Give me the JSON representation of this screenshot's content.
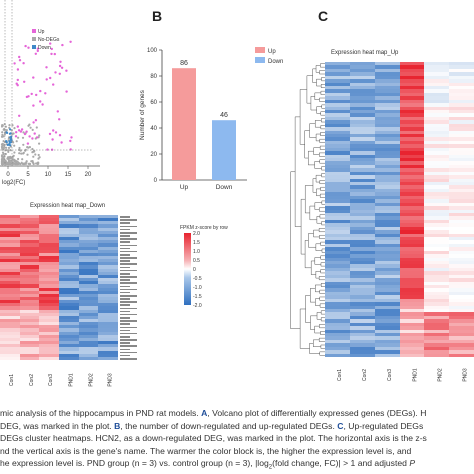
{
  "panels": {
    "B": "B",
    "C": "C"
  },
  "volcano": {
    "legend": [
      {
        "label": "Up",
        "color": "#e565d8"
      },
      {
        "label": "No-DEGs",
        "color": "#a9a9a9"
      },
      {
        "label": "Down",
        "color": "#3f89c8"
      }
    ],
    "xlabel_fragment": "log2(FC)",
    "x_ticks": [
      "0",
      "5",
      "10",
      "15",
      "20"
    ]
  },
  "bar_chart": {
    "chart_data": {
      "type": "bar",
      "categories": [
        "Up",
        "Down"
      ],
      "values": [
        86,
        46
      ],
      "ylabel": "Number of genes",
      "ylim": [
        0,
        100
      ],
      "y_ticks": [
        "0",
        "20",
        "40",
        "60",
        "80",
        "100"
      ],
      "legend": [
        "Up",
        "Down"
      ],
      "colors": [
        "#f59b9b",
        "#8db9ef"
      ]
    }
  },
  "heatmap_down": {
    "title": "Expression heat map_Down",
    "legend_title": "FPKM z-score by row",
    "legend_ticks": [
      "2.0",
      "1.5",
      "1.0",
      "0.5",
      "0",
      "-0.5",
      "-1.0",
      "-1.5",
      "-2.0"
    ],
    "columns": [
      "Con1",
      "Con2",
      "Con3",
      "PND1",
      "PND2",
      "PND3"
    ]
  },
  "heatmap_up": {
    "title": "Expression heat map_Up",
    "columns": [
      "Con1",
      "Con2",
      "Con3",
      "PND1",
      "PND2",
      "PND3"
    ]
  },
  "caption": {
    "line1_pre": "mic analysis of the hippocampus in PND rat models. ",
    "line1_a": "A",
    "line1_post": ", Volcano plot of differentially expressed genes (DEGs). H",
    "line2_pre": " DEG, was marked in the plot. ",
    "line2_b": "B",
    "line2_mid": ", the number of down-regulated and up-regulated DEGs. ",
    "line2_c": "C",
    "line2_post": ", Up-regulated DEGs",
    "line3": " DEGs cluster heatmaps. HCN2, as a down-regulated DEG, was marked in the plot. The horizontal axis is the z-s",
    "line4": "nd the vertical axis is the gene's name. The warmer the color block is, the higher the expression level is, and",
    "line5_pre": "he expression level is. PND group (n = 3) vs. control group (n = 3), |log",
    "line5_sub": "2",
    "line5_post": "(fold change, FC)| > 1 and adjusted ",
    "line5_p": "P"
  }
}
